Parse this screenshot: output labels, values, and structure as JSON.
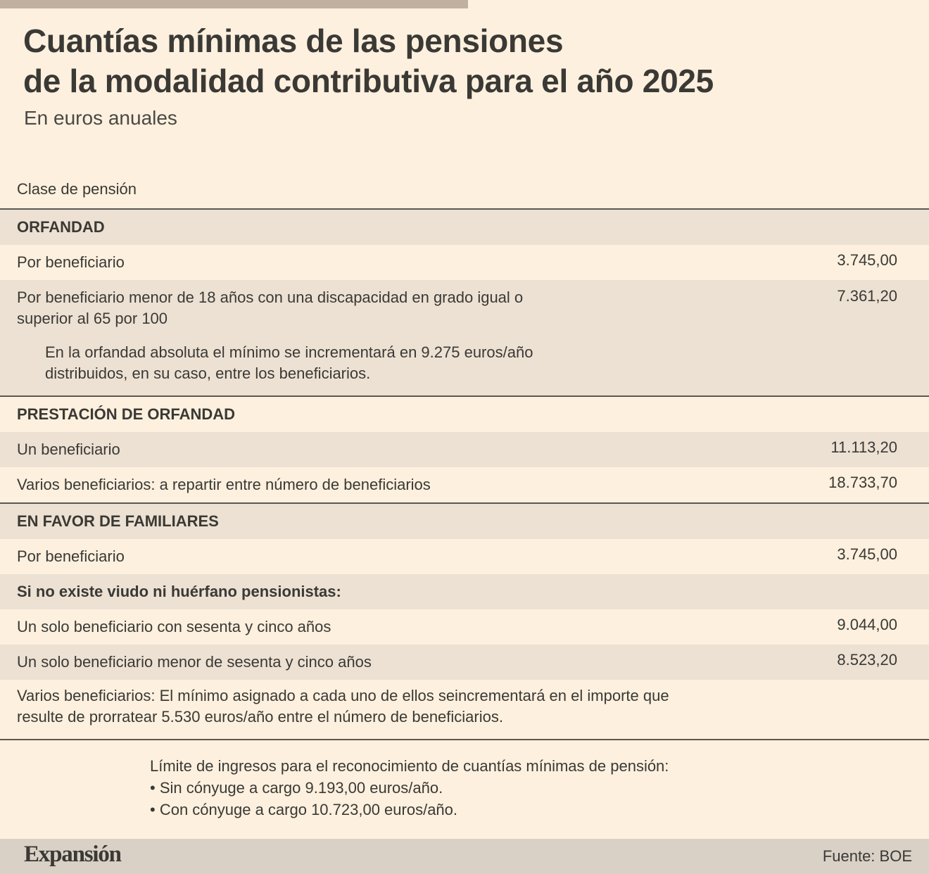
{
  "header": {
    "title": "Cuantías mínimas de las pensiones\nde la modalidad contributiva para el año 2025",
    "subtitle": "En euros anuales"
  },
  "table": {
    "column_header": "Clase de pensión",
    "orfandad": {
      "title": "ORFANDAD",
      "row1_label": "Por beneficiario",
      "row1_value": "3.745,00",
      "row2_label": "Por beneficiario menor de 18 años con una discapacidad en grado igual o superior al 65 por 100",
      "row2_value": "7.361,20",
      "note": "En la orfandad absoluta el mínimo se incrementará en 9.275 euros/año distribuidos, en su caso, entre los beneficiarios."
    },
    "prestacion": {
      "title": "PRESTACIÓN DE ORFANDAD",
      "row1_label": "Un beneficiario",
      "row1_value": "11.113,20",
      "row2_label": "Varios beneficiarios: a repartir entre número de beneficiarios",
      "row2_value": "18.733,70"
    },
    "familiares": {
      "title": "EN FAVOR DE FAMILIARES",
      "row1_label": "Por beneficiario",
      "row1_value": "3.745,00",
      "subheading": "Si no existe viudo ni huérfano pensionistas:",
      "row2_label": "Un solo beneficiario con sesenta y cinco años",
      "row2_value": "9.044,00",
      "row3_label": "Un solo beneficiario menor de sesenta y cinco años",
      "row3_value": "8.523,20",
      "note": "Varios beneficiarios: El mínimo asignado a cada uno de ellos seincrementará en el importe que resulte de prorratear 5.530 euros/año entre el número de beneficiarios."
    }
  },
  "limits": {
    "intro": "Límite de ingresos para el reconocimiento de cuantías mínimas de pensión:",
    "item1": "• Sin cónyuge a cargo 9.193,00 euros/año.",
    "item2": "• Con cónyuge a cargo 10.723,00 euros/año."
  },
  "footer": {
    "logo": "Expansión",
    "source": "Fuente: BOE"
  },
  "colors": {
    "background": "#fdf0de",
    "shade": "#ede1d3",
    "topbar": "#bfb0a0",
    "footer": "#d9d0c6",
    "text": "#3a3935"
  }
}
